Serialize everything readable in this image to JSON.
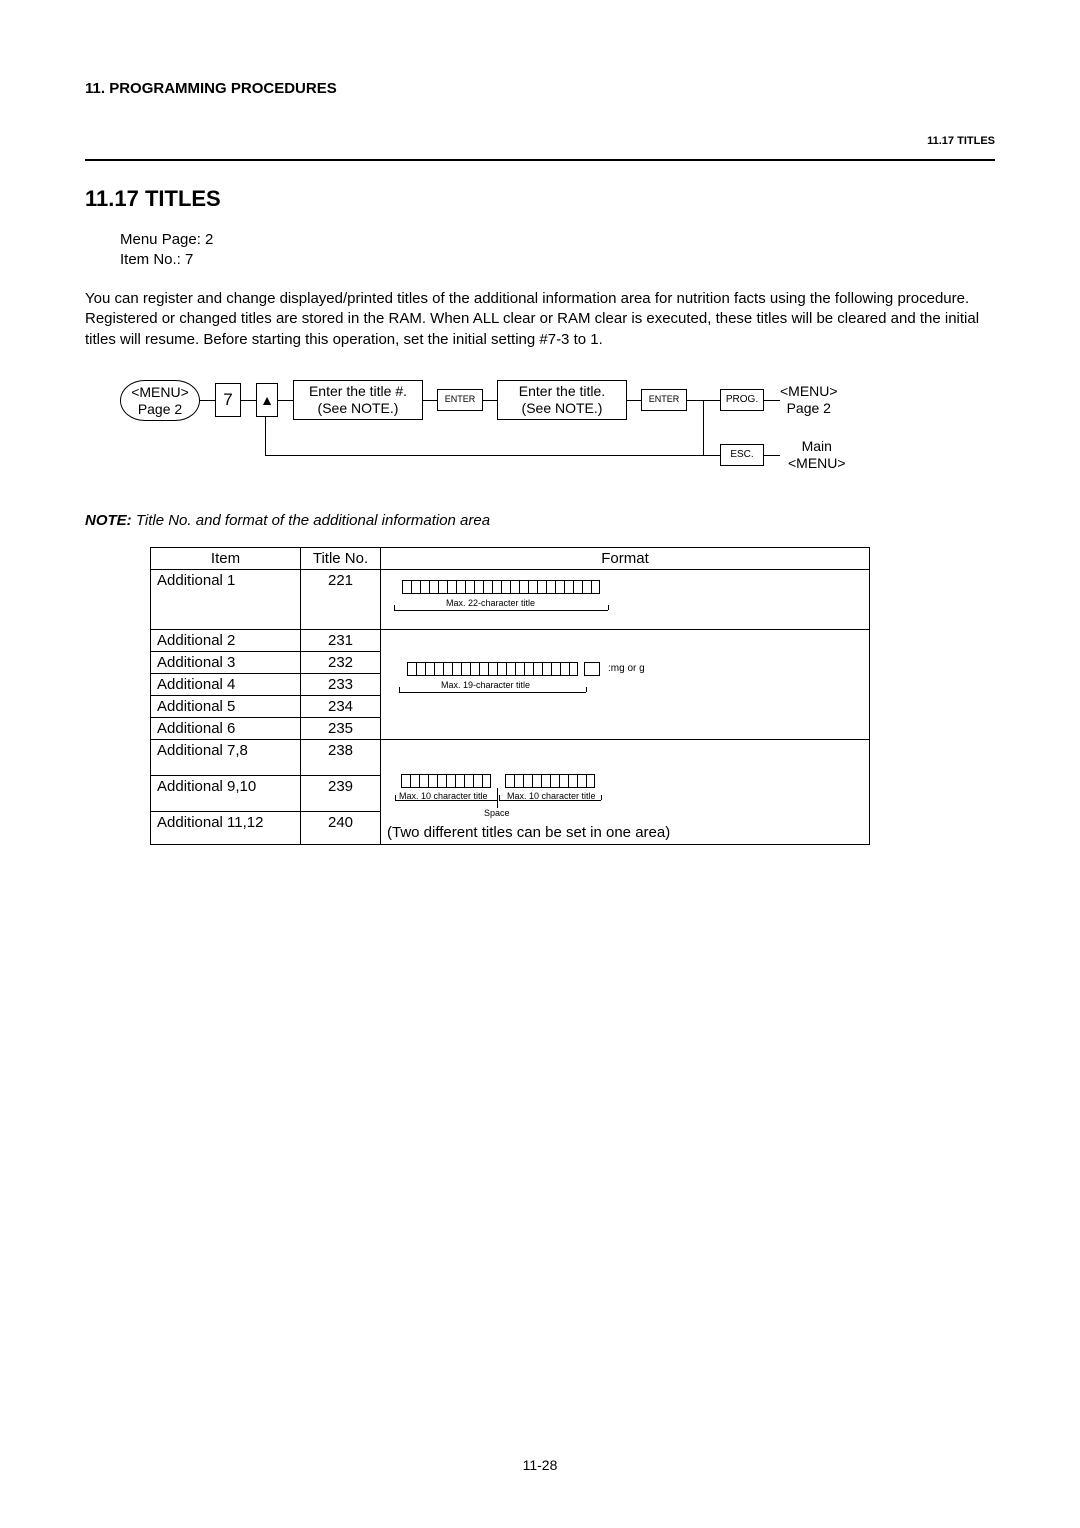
{
  "header": {
    "left": "11.  PROGRAMMING PROCEDURES",
    "right": "11.17 TITLES"
  },
  "section": {
    "title": "11.17  TITLES",
    "menu_page": "Menu Page: 2",
    "item_no": "Item No.:      7"
  },
  "body": "You can register and change displayed/printed titles of the additional information area for nutrition facts using the following procedure.   Registered or changed titles are stored in the RAM.   When ALL clear or RAM clear is executed, these titles will be cleared and the initial titles will resume.   Before starting this operation, set the initial setting #7-3 to 1.",
  "flow": {
    "menu_oval": "<MENU>\nPage 2",
    "seven": "7",
    "up": "▲",
    "enter_num": "Enter the title #.\n(See NOTE.)",
    "enter1": "ENTER",
    "enter_title": "Enter the title.\n(See NOTE.)",
    "enter2": "ENTER",
    "prog": "PROG.",
    "esc": "ESC.",
    "menu2": "<MENU>\nPage 2",
    "main": "Main\n<MENU>"
  },
  "note": {
    "bold": "NOTE:",
    "text": " Title No. and format of the additional information area"
  },
  "table": {
    "headers": {
      "item": "Item",
      "tn": "Title No.",
      "format": "Format"
    },
    "row1": {
      "item": "Additional 1",
      "tn": "221",
      "caption": "Max. 22-character title",
      "nboxes": 22
    },
    "group": {
      "rows": [
        {
          "item": "Additional 2",
          "tn": "231"
        },
        {
          "item": "Additional 3",
          "tn": "232"
        },
        {
          "item": "Additional 4",
          "tn": "233"
        },
        {
          "item": "Additional 5",
          "tn": "234"
        },
        {
          "item": "Additional 6",
          "tn": "235"
        }
      ],
      "caption": "Max. 19-character title",
      "suffix": ":mg or g",
      "nboxes": 19
    },
    "group2": {
      "rows": [
        {
          "item": "Additional 7,8",
          "tn": "238"
        },
        {
          "item": "Additional 9,10",
          "tn": "239"
        },
        {
          "item": "Additional 11,12",
          "tn": "240"
        }
      ],
      "cap_l": "Max. 10 character title",
      "cap_r": "Max. 10 character title",
      "space": "Space",
      "bottom": "(Two different titles can be set in one area)",
      "nboxes_l": 10,
      "nboxes_r": 10
    }
  },
  "footer": "11-28"
}
